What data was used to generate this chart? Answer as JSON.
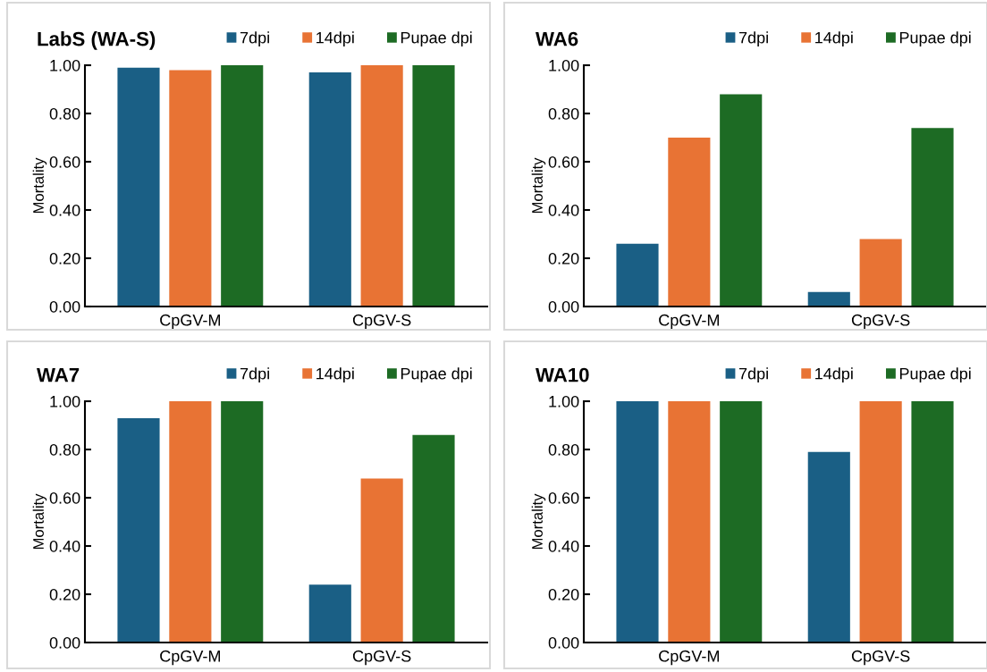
{
  "chart_data": [
    {
      "type": "bar",
      "title": "LabS (WA-S)",
      "ylabel": "Mortality",
      "categories": [
        "CpGV-M",
        "CpGV-S"
      ],
      "legend": "top",
      "grid": false,
      "ylim": [
        0,
        1
      ],
      "yticks": [
        {
          "value": 0,
          "label": "0.00"
        },
        {
          "value": 0.2,
          "label": "0.20"
        },
        {
          "value": 0.4,
          "label": "0.40"
        },
        {
          "value": 0.6,
          "label": "0.60"
        },
        {
          "value": 0.8,
          "label": "0.80"
        },
        {
          "value": 1,
          "label": "1.00"
        }
      ],
      "series": [
        {
          "name": "7dpi",
          "color": "#1a5f85",
          "values": [
            0.99,
            0.97
          ]
        },
        {
          "name": "14dpi",
          "color": "#e87334",
          "values": [
            0.98,
            1.0
          ]
        },
        {
          "name": "Pupae dpi",
          "color": "#1d6b24",
          "values": [
            1.0,
            1.0
          ]
        }
      ]
    },
    {
      "type": "bar",
      "title": "WA6",
      "ylabel": "Mortality",
      "categories": [
        "CpGV-M",
        "CpGV-S"
      ],
      "legend": "top",
      "grid": false,
      "ylim": [
        0,
        1
      ],
      "yticks": [
        {
          "value": 0,
          "label": "0.00"
        },
        {
          "value": 0.2,
          "label": "0.20"
        },
        {
          "value": 0.4,
          "label": "0.40"
        },
        {
          "value": 0.6,
          "label": "0.60"
        },
        {
          "value": 0.8,
          "label": "0.80"
        },
        {
          "value": 1,
          "label": "1.00"
        }
      ],
      "series": [
        {
          "name": "7dpi",
          "color": "#1a5f85",
          "values": [
            0.26,
            0.06
          ]
        },
        {
          "name": "14dpi",
          "color": "#e87334",
          "values": [
            0.7,
            0.28
          ]
        },
        {
          "name": "Pupae dpi",
          "color": "#1d6b24",
          "values": [
            0.88,
            0.74
          ]
        }
      ]
    },
    {
      "type": "bar",
      "title": "WA7",
      "ylabel": "Mortality",
      "categories": [
        "CpGV-M",
        "CpGV-S"
      ],
      "legend": "top",
      "grid": false,
      "ylim": [
        0,
        1
      ],
      "yticks": [
        {
          "value": 0,
          "label": "0.00"
        },
        {
          "value": 0.2,
          "label": "0.20"
        },
        {
          "value": 0.4,
          "label": "0.40"
        },
        {
          "value": 0.6,
          "label": "0.60"
        },
        {
          "value": 0.8,
          "label": "0.80"
        },
        {
          "value": 1,
          "label": "1.00"
        }
      ],
      "series": [
        {
          "name": "7dpi",
          "color": "#1a5f85",
          "values": [
            0.93,
            0.24
          ]
        },
        {
          "name": "14dpi",
          "color": "#e87334",
          "values": [
            1.0,
            0.68
          ]
        },
        {
          "name": "Pupae dpi",
          "color": "#1d6b24",
          "values": [
            1.0,
            0.86
          ]
        }
      ]
    },
    {
      "type": "bar",
      "title": "WA10",
      "ylabel": "Mortality",
      "categories": [
        "CpGV-M",
        "CpGV-S"
      ],
      "legend": "top",
      "grid": false,
      "ylim": [
        0,
        1
      ],
      "yticks": [
        {
          "value": 0,
          "label": "0.00"
        },
        {
          "value": 0.2,
          "label": "0.20"
        },
        {
          "value": 0.4,
          "label": "0.40"
        },
        {
          "value": 0.6,
          "label": "0.60"
        },
        {
          "value": 0.8,
          "label": "0.80"
        },
        {
          "value": 1,
          "label": "1.00"
        }
      ],
      "series": [
        {
          "name": "7dpi",
          "color": "#1a5f85",
          "values": [
            1.0,
            0.79
          ]
        },
        {
          "name": "14dpi",
          "color": "#e87334",
          "values": [
            1.0,
            1.0
          ]
        },
        {
          "name": "Pupae dpi",
          "color": "#1d6b24",
          "values": [
            1.0,
            1.0
          ]
        }
      ]
    }
  ]
}
